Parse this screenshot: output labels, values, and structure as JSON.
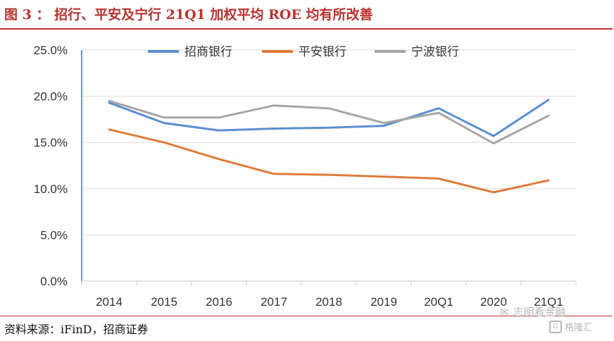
{
  "figure": {
    "title": "图 3 ： 招行、平安及宁行 21Q1 加权平均 ROE 均有所改善",
    "source": "资料来源：iFinD，招商证券"
  },
  "watermark": {
    "brand": "格隆汇",
    "account": "志明看金融"
  },
  "colors": {
    "accent": "#b8322f",
    "cmb": "#5b8ed0",
    "pingan": "#e07b39",
    "ningbo": "#a6a6a6",
    "axis": "#5b9bd5",
    "grid": "#d9d9d9"
  },
  "chart_data": {
    "type": "line",
    "title": "",
    "xlabel": "",
    "ylabel": "",
    "categories": [
      "2014",
      "2015",
      "2016",
      "2017",
      "2018",
      "2019",
      "20Q1",
      "2020",
      "21Q1"
    ],
    "ylim": [
      0,
      25
    ],
    "yticks": [
      "0.0%",
      "5.0%",
      "10.0%",
      "15.0%",
      "20.0%",
      "25.0%"
    ],
    "grid": true,
    "legend": "top",
    "series": [
      {
        "name": "招商银行",
        "color": "#5b8ed0",
        "values": [
          19.3,
          17.1,
          16.3,
          16.5,
          16.6,
          16.8,
          18.7,
          15.7,
          19.6
        ]
      },
      {
        "name": "平安银行",
        "color": "#e07b39",
        "values": [
          16.4,
          15.0,
          13.2,
          11.6,
          11.5,
          11.3,
          11.1,
          9.6,
          10.9
        ]
      },
      {
        "name": "宁波银行",
        "color": "#a6a6a6",
        "values": [
          19.5,
          17.7,
          17.7,
          19.0,
          18.7,
          17.1,
          18.2,
          14.9,
          17.9
        ]
      }
    ]
  }
}
